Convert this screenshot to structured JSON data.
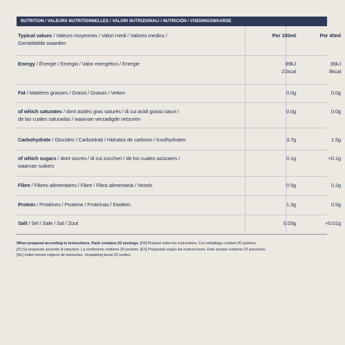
{
  "header": {
    "title": "NUTRITION / VALEURS NUTRITIONNELLES / VALORI NUTRIZIONALI / NUTRICIÓN / VOEDINGSWAARDE"
  },
  "table": {
    "columns": [
      "Per 100ml",
      "Per 40ml"
    ],
    "rows": [
      {
        "bold": "Typical values",
        "rest": [
          " / Valeurs moyennes / Valori medi / Valores medios /",
          "Gemiddelde waarden"
        ],
        "per100": [],
        "per40": [],
        "head": true
      },
      {
        "bold": "Energy",
        "rest": [
          " / Énergie / Energia / Valor energético / Energie"
        ],
        "per100": [
          "89kJ",
          "21kcal"
        ],
        "per40": [
          "36kJ",
          "8kcal"
        ]
      },
      {
        "bold": "Fat",
        "rest": [
          " / Matières grasses / Grassi / Grasas / Vetten"
        ],
        "per100": [
          "0.0g"
        ],
        "per40": [
          "0.0g"
        ]
      },
      {
        "bold": "of which saturates",
        "rest": [
          " / dont acides gras saturés / di cui acidi grassi saturi /",
          "de las cuales saturadas / waarvan verzadigde vetzuren"
        ],
        "per100": [
          "0.0g"
        ],
        "per40": [
          "0.0g"
        ]
      },
      {
        "bold": "Carbohydrate",
        "rest": [
          " / Glucides / Carboidrati / Hidratos de carbono / Koolhydraten"
        ],
        "per100": [
          "3.7g"
        ],
        "per40": [
          "1.5g"
        ]
      },
      {
        "bold": "of which sugars",
        "rest": [
          " / dont sucres / di cui zuccheri / de los cuales azúcares /",
          "waarvan suikers"
        ],
        "per100": [
          "0.1g"
        ],
        "per40": [
          "<0.1g"
        ]
      },
      {
        "bold": "Fibre",
        "rest": [
          " / Fibres alimentaires / Fibre / Fibra alimentaria / Vezels"
        ],
        "per100": [
          "0.5g"
        ],
        "per40": [
          "0.2g"
        ]
      },
      {
        "bold": "Protein",
        "rest": [
          " / Protéines / Proteine / Proteínas / Eiwitten"
        ],
        "per100": [
          "1.3g"
        ],
        "per40": [
          "0.5g"
        ]
      },
      {
        "bold": "Salt",
        "rest": [
          " / Sel / Sale / Sal / Zout"
        ],
        "per100": [
          "0.03g"
        ],
        "per40": [
          "<0.01g"
        ]
      }
    ]
  },
  "footnote": {
    "bold": "When prepared according to instructions. Pack contains 20 servings.",
    "lines": [
      " [FR] Préparé selon les instructions. Cet emballage contient 20 portions.",
      "[IT] Se preparato secondo le istruzioni. La confezione contiene 20 porzioni. [ES] Preparado según las instrucciones. Este envase contiene 20 porciones.",
      "[NL] Indien bereid volgens de instructies. Verpakking bevat 20 porties."
    ]
  }
}
